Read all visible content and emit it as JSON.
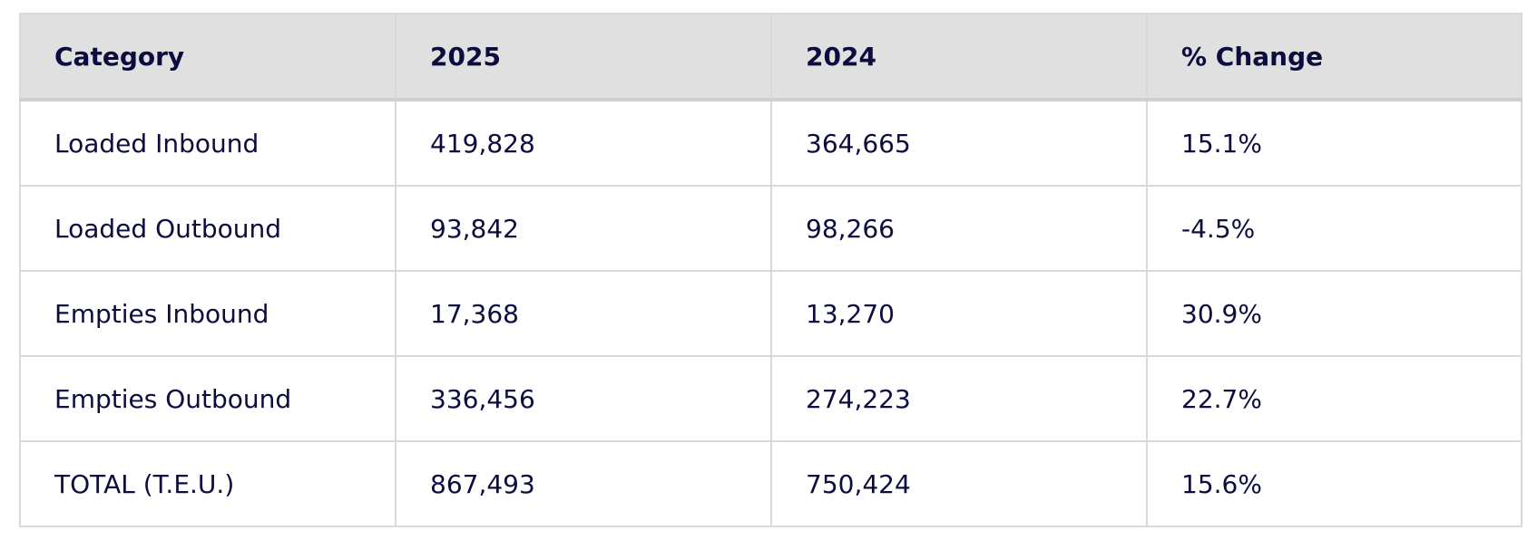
{
  "table": {
    "headers": [
      "Category",
      "2025",
      "2024",
      "% Change"
    ],
    "rows": [
      [
        "Loaded Inbound",
        "419,828",
        "364,665",
        "15.1%"
      ],
      [
        "Loaded Outbound",
        "93,842",
        "98,266",
        "-4.5%"
      ],
      [
        "Empties Inbound",
        "17,368",
        "13,270",
        "30.9%"
      ],
      [
        "Empties Outbound",
        "336,456",
        "274,223",
        "22.7%"
      ],
      [
        "TOTAL (T.E.U.)",
        "867,493",
        "750,424",
        "15.6%"
      ]
    ]
  },
  "colors": {
    "text": "#0d0c3f",
    "header_bg": "#e0e0e0",
    "border": "#d9d9d9"
  }
}
